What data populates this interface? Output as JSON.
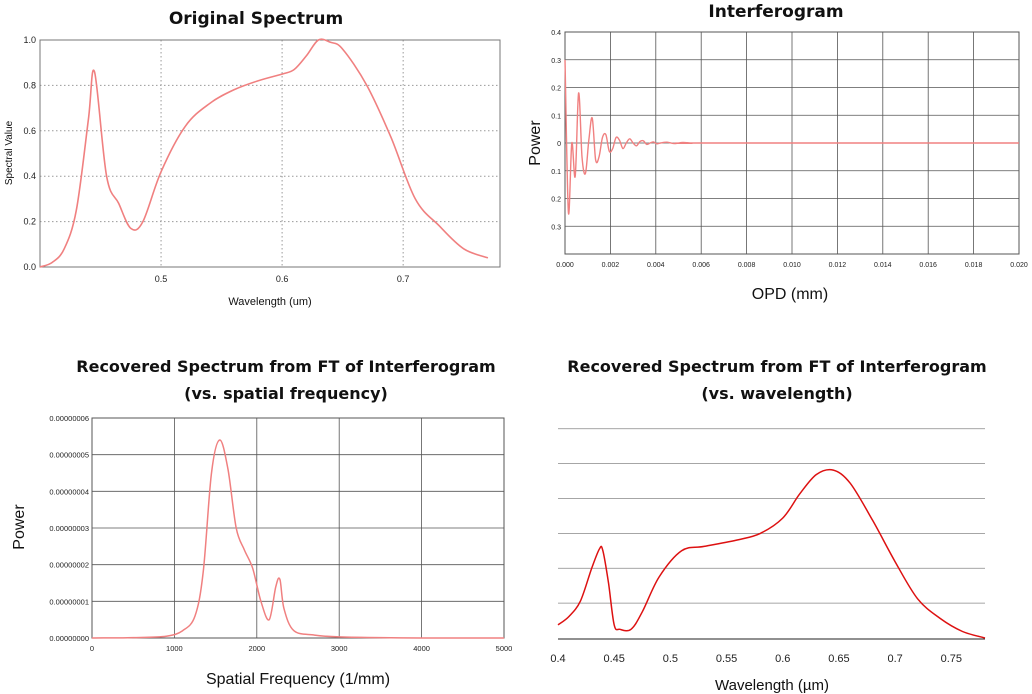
{
  "colors": {
    "curve_light": "#f08080",
    "curve_dark": "#dd1111",
    "grid": "#555555",
    "grid_dotted": "#999999"
  },
  "chart_data": [
    {
      "type": "line",
      "title": "Original Spectrum",
      "xlabel": "Wavelength (um)",
      "ylabel": "Spectral Value",
      "xlim": [
        0.4,
        0.78
      ],
      "ylim": [
        0,
        1.0
      ],
      "xticks": [
        0.5,
        0.6,
        0.7
      ],
      "xtick_labels": [
        "0.5",
        "0.6",
        "0.7"
      ],
      "yticks": [
        0,
        0.2,
        0.4,
        0.6,
        0.8,
        1.0
      ],
      "ytick_labels": [
        "0.0",
        "0.2",
        "0.4",
        "0.6",
        "0.8",
        "1.0"
      ],
      "grid": "dotted",
      "series": [
        {
          "name": "spectrum",
          "x": [
            0.4,
            0.41,
            0.42,
            0.43,
            0.44,
            0.445,
            0.455,
            0.465,
            0.475,
            0.485,
            0.5,
            0.52,
            0.54,
            0.56,
            0.58,
            0.6,
            0.61,
            0.62,
            0.63,
            0.64,
            0.65,
            0.67,
            0.69,
            0.71,
            0.73,
            0.75,
            0.77
          ],
          "y": [
            0.0,
            0.02,
            0.08,
            0.25,
            0.65,
            0.86,
            0.4,
            0.28,
            0.17,
            0.2,
            0.42,
            0.62,
            0.72,
            0.78,
            0.82,
            0.85,
            0.87,
            0.93,
            1.0,
            0.99,
            0.96,
            0.8,
            0.57,
            0.3,
            0.18,
            0.08,
            0.04
          ]
        }
      ]
    },
    {
      "type": "line",
      "title": "Interferogram",
      "xlabel": "OPD (mm)",
      "ylabel": "Power",
      "xlim": [
        0,
        0.02
      ],
      "ylim": [
        -0.4,
        0.4
      ],
      "xticks": [
        0,
        0.002,
        0.004,
        0.006,
        0.008,
        0.01,
        0.012,
        0.014,
        0.016,
        0.018,
        0.02
      ],
      "xtick_labels": [
        "0.000",
        "0.002",
        "0.004",
        "0.006",
        "0.008",
        "0.010",
        "0.012",
        "0.014",
        "0.016",
        "0.018",
        "0.020"
      ],
      "yticks": [
        0.4,
        0.3,
        0.2,
        0.1,
        0,
        -0.1,
        -0.2,
        -0.3
      ],
      "ytick_labels": [
        "0.4",
        "0.3",
        "0.2",
        "0.1",
        "0",
        "0.1",
        "0.2",
        "0.3"
      ],
      "grid": "solid",
      "series": [
        {
          "name": "interferogram",
          "x": [
            0,
            0.00015,
            0.0003,
            0.00045,
            0.0006,
            0.00075,
            0.0009,
            0.00105,
            0.0012,
            0.00135,
            0.0015,
            0.00165,
            0.0018,
            0.00195,
            0.0021,
            0.00225,
            0.0024,
            0.00255,
            0.0027,
            0.00285,
            0.003,
            0.00315,
            0.0033,
            0.00345,
            0.0036,
            0.00375,
            0.0039,
            0.00405,
            0.0042,
            0.0045,
            0.0048,
            0.0052,
            0.0056,
            0.006,
            0.02
          ],
          "y": [
            0.3,
            -0.25,
            0.0,
            -0.12,
            0.18,
            -0.05,
            -0.11,
            0.01,
            0.09,
            -0.06,
            -0.05,
            0.02,
            0.03,
            -0.03,
            -0.02,
            0.02,
            0.01,
            -0.02,
            0.0,
            0.015,
            0.0,
            -0.01,
            0.005,
            0.008,
            -0.005,
            0.0,
            0.004,
            -0.003,
            0.0,
            0.003,
            -0.002,
            0.002,
            -0.001,
            0.0,
            0.0
          ]
        }
      ]
    },
    {
      "type": "line",
      "title": "Recovered Spectrum from FT of Interferogram",
      "subtitle": "(vs. spatial frequency)",
      "xlabel": "Spatial Frequency (1/mm)",
      "ylabel": "Power",
      "xlim": [
        0,
        5000
      ],
      "ylim": [
        0,
        6e-08
      ],
      "xticks": [
        0,
        1000,
        2000,
        3000,
        4000,
        5000
      ],
      "xtick_labels": [
        "0",
        "1000",
        "2000",
        "3000",
        "4000",
        "5000"
      ],
      "yticks": [
        0,
        1e-08,
        2e-08,
        3e-08,
        4e-08,
        5e-08,
        6e-08
      ],
      "ytick_labels": [
        "0.00000000",
        "0.00000001",
        "0.00000002",
        "0.00000003",
        "0.00000004",
        "0.00000005",
        "0.00000006"
      ],
      "grid": "solid",
      "series": [
        {
          "name": "recovered",
          "x": [
            0,
            500,
            900,
            1100,
            1250,
            1350,
            1450,
            1550,
            1650,
            1750,
            1850,
            1950,
            2050,
            2150,
            2230,
            2280,
            2330,
            2450,
            2700,
            3000,
            3500,
            4000,
            4500,
            5000
          ],
          "y": [
            0,
            1e-10,
            5e-10,
            2e-09,
            6e-09,
            1.8e-08,
            4.5e-08,
            5.4e-08,
            4.6e-08,
            3e-08,
            2.4e-08,
            1.9e-08,
            1e-08,
            5e-09,
            1.4e-08,
            1.6e-08,
            8e-09,
            2e-09,
            8e-10,
            3e-10,
            1e-10,
            0,
            0,
            0
          ]
        }
      ]
    },
    {
      "type": "line",
      "title": "Recovered Spectrum from FT of Interferogram",
      "subtitle": "(vs. wavelength)",
      "xlabel": "Wavelength (µm)",
      "ylabel": "",
      "xlim": [
        0.4,
        0.78
      ],
      "ylim": [
        0,
        1.0
      ],
      "xticks": [
        0.4,
        0.45,
        0.5,
        0.55,
        0.6,
        0.65,
        0.7,
        0.75
      ],
      "xtick_labels": [
        "0.4",
        "0.45",
        "0.5",
        "0.55",
        "0.6",
        "0.65",
        "0.7",
        "0.75"
      ],
      "yticks": [
        0.16,
        0.32,
        0.48,
        0.64,
        0.8,
        0.96
      ],
      "ytick_labels": [],
      "grid": "horizontal",
      "series": [
        {
          "name": "recovered",
          "x": [
            0.4,
            0.41,
            0.42,
            0.43,
            0.437,
            0.44,
            0.445,
            0.45,
            0.455,
            0.465,
            0.475,
            0.49,
            0.51,
            0.53,
            0.56,
            0.58,
            0.6,
            0.615,
            0.63,
            0.645,
            0.66,
            0.68,
            0.7,
            0.72,
            0.74,
            0.76,
            0.78
          ],
          "y": [
            0.06,
            0.1,
            0.17,
            0.32,
            0.41,
            0.4,
            0.25,
            0.06,
            0.04,
            0.04,
            0.12,
            0.28,
            0.4,
            0.42,
            0.45,
            0.48,
            0.55,
            0.66,
            0.75,
            0.77,
            0.71,
            0.54,
            0.35,
            0.18,
            0.09,
            0.03,
            0.0
          ]
        }
      ]
    }
  ]
}
